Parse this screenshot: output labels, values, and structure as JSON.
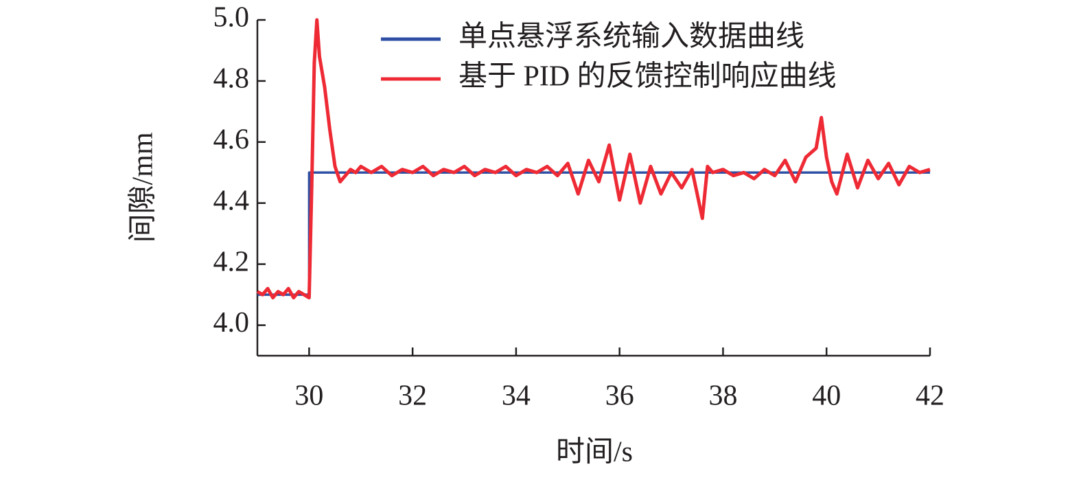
{
  "chart_data": {
    "type": "line",
    "xlabel": "时间/s",
    "ylabel": "间隙/mm",
    "xlim": [
      29,
      42
    ],
    "ylim": [
      3.9,
      5.0
    ],
    "xticks": [
      30,
      32,
      34,
      36,
      38,
      40,
      42
    ],
    "yticks": [
      {
        "value": 4,
        "label": "4.0"
      },
      4.2,
      4.4,
      4.6,
      4.8,
      {
        "value": 5,
        "label": "5.0"
      }
    ],
    "legend": "upper right",
    "series": [
      {
        "name": "单点悬浮系统输入数据曲线",
        "color": "#2e4fa3",
        "x": [
          29,
          30,
          30,
          42
        ],
        "values": [
          4.1,
          4.1,
          4.5,
          4.5
        ]
      },
      {
        "name": "基于 PID 的反馈控制响应曲线",
        "color": "#ee2a35",
        "x": [
          29.0,
          29.1,
          29.2,
          29.3,
          29.4,
          29.5,
          29.6,
          29.7,
          29.8,
          29.9,
          30.0,
          30.05,
          30.1,
          30.15,
          30.2,
          30.3,
          30.4,
          30.5,
          30.6,
          30.7,
          30.8,
          30.9,
          31.0,
          31.2,
          31.4,
          31.6,
          31.8,
          32.0,
          32.2,
          32.4,
          32.6,
          32.8,
          33.0,
          33.2,
          33.4,
          33.6,
          33.8,
          34.0,
          34.2,
          34.4,
          34.6,
          34.8,
          35.0,
          35.2,
          35.4,
          35.6,
          35.8,
          36.0,
          36.2,
          36.4,
          36.6,
          36.8,
          37.0,
          37.2,
          37.4,
          37.6,
          37.7,
          37.8,
          38.0,
          38.2,
          38.4,
          38.6,
          38.8,
          39.0,
          39.2,
          39.4,
          39.6,
          39.8,
          39.9,
          40.0,
          40.1,
          40.2,
          40.4,
          40.6,
          40.8,
          41.0,
          41.2,
          41.4,
          41.6,
          41.8,
          42.0
        ],
        "values": [
          4.11,
          4.1,
          4.12,
          4.09,
          4.11,
          4.1,
          4.12,
          4.09,
          4.11,
          4.1,
          4.09,
          4.45,
          4.86,
          5.0,
          4.88,
          4.78,
          4.64,
          4.52,
          4.47,
          4.49,
          4.51,
          4.5,
          4.52,
          4.5,
          4.52,
          4.49,
          4.51,
          4.5,
          4.52,
          4.49,
          4.51,
          4.5,
          4.52,
          4.49,
          4.51,
          4.5,
          4.52,
          4.49,
          4.51,
          4.5,
          4.52,
          4.49,
          4.53,
          4.43,
          4.54,
          4.47,
          4.59,
          4.41,
          4.56,
          4.4,
          4.52,
          4.43,
          4.5,
          4.45,
          4.51,
          4.35,
          4.52,
          4.5,
          4.51,
          4.49,
          4.5,
          4.48,
          4.51,
          4.49,
          4.54,
          4.47,
          4.55,
          4.58,
          4.68,
          4.55,
          4.47,
          4.43,
          4.56,
          4.45,
          4.54,
          4.48,
          4.53,
          4.46,
          4.52,
          4.5,
          4.51
        ]
      }
    ]
  }
}
